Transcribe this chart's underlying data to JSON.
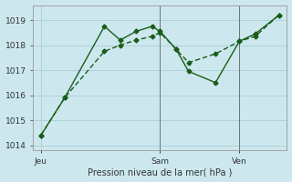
{
  "xlabel": "Pression niveau de la mer( hPa )",
  "background_color": "#cce8ee",
  "grid_color": "#aacdd5",
  "line_color": "#1a5c1a",
  "ylim": [
    1013.8,
    1019.6
  ],
  "yticks": [
    1014,
    1015,
    1016,
    1017,
    1018,
    1019
  ],
  "day_labels": [
    "Jeu",
    "Sam",
    "Ven"
  ],
  "day_positions": [
    0.5,
    8.0,
    13.0
  ],
  "vline_positions": [
    8.0,
    13.0
  ],
  "xlim": [
    0,
    16
  ],
  "series1_x": [
    0.5,
    2.0,
    4.5,
    5.5,
    6.5,
    7.5,
    8.0,
    9.0,
    9.8,
    11.5,
    13.0,
    14.0,
    15.5
  ],
  "series1_y": [
    1014.4,
    1015.9,
    1018.75,
    1018.2,
    1018.55,
    1018.75,
    1018.55,
    1017.85,
    1016.95,
    1016.5,
    1018.15,
    1018.45,
    1019.2
  ],
  "series2_x": [
    0.5,
    2.0,
    4.5,
    5.5,
    6.5,
    7.5,
    8.0,
    9.0,
    9.8,
    11.5,
    13.0,
    14.0,
    15.5
  ],
  "series2_y": [
    1014.4,
    1015.9,
    1017.75,
    1018.0,
    1018.2,
    1018.35,
    1018.5,
    1017.85,
    1017.3,
    1017.65,
    1018.15,
    1018.35,
    1019.2
  ]
}
